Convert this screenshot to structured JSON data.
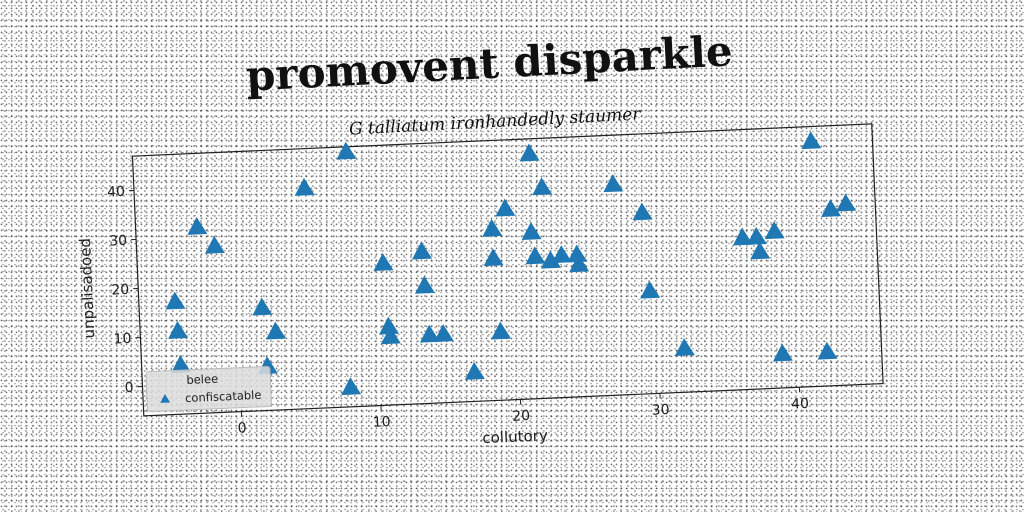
{
  "chart_data": {
    "type": "scatter",
    "title": "promovent disparkle",
    "subtitle": "G talliatum ironhandedly staumer",
    "xlabel": "collutory",
    "ylabel": "unpalisadoed",
    "xlim": [
      -7,
      46
    ],
    "ylim": [
      -6,
      47
    ],
    "xticks": [
      0,
      10,
      20,
      30,
      40
    ],
    "yticks": [
      0,
      10,
      20,
      30,
      40
    ],
    "grid": false,
    "legend": {
      "title": "belee",
      "position": "lower-left",
      "entries": [
        "confiscatable"
      ]
    },
    "series": [
      {
        "name": "confiscatable",
        "marker": "triangle-up",
        "color": "#1f77b4",
        "x": [
          8.3,
          5.2,
          -2.6,
          -1.4,
          -4.4,
          -4.3,
          -4.2,
          1.8,
          2.7,
          2.0,
          7.9,
          10.6,
          10.8,
          10.9,
          13.4,
          13.5,
          13.7,
          14.7,
          16.8,
          18.5,
          18.5,
          18.8,
          19.5,
          21.4,
          21.3,
          21.5,
          22.2,
          22.6,
          23.4,
          24.5,
          24.6,
          27.3,
          29.3,
          29.6,
          31.9,
          36.4,
          37.4,
          37.6,
          38.7,
          38.9,
          41.6,
          42.1,
          42.8,
          43.9
        ],
        "y": [
          46,
          39,
          32,
          28,
          17,
          11,
          4,
          15,
          10,
          3,
          -2,
          23,
          10,
          8,
          25,
          18,
          8,
          8,
          0,
          29,
          23,
          8,
          33,
          44,
          28,
          23,
          37,
          22,
          23,
          23,
          21,
          37,
          31,
          15,
          3,
          25,
          25,
          22,
          26,
          1,
          44,
          1,
          30,
          31
        ]
      }
    ]
  }
}
